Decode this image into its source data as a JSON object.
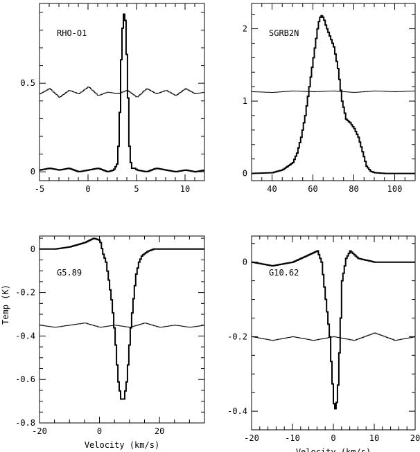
{
  "figure": {
    "ylabel": "Temp (K)"
  },
  "chart_data": [
    {
      "type": "line",
      "title": "RHO-O1",
      "xlabel": "",
      "ylabel": "",
      "xlim": [
        -5,
        12
      ],
      "ylim": [
        -0.05,
        0.95
      ],
      "xticks": [
        -5,
        0,
        5,
        10
      ],
      "xtick_labels": [
        "-5",
        "0",
        "5",
        "10"
      ],
      "yticks": [
        0,
        0.5
      ],
      "ytick_labels": [
        "0",
        "0.5"
      ],
      "x_minor_step": 1,
      "y_minor_step": 0.1,
      "series": [
        {
          "style": "thick",
          "x": [
            -5,
            -4,
            -3,
            -2,
            -1,
            0,
            1,
            2,
            2.6,
            3.0,
            3.2,
            3.4,
            3.6,
            3.8,
            4.0,
            4.2,
            4.4,
            4.8,
            5,
            6,
            7,
            8,
            9,
            10,
            11,
            12
          ],
          "y": [
            0.01,
            0.02,
            0.01,
            0.02,
            0.0,
            0.01,
            0.02,
            0.0,
            0.01,
            0.05,
            0.3,
            0.72,
            0.9,
            0.85,
            0.55,
            0.15,
            0.02,
            0.02,
            0.01,
            0.0,
            0.02,
            0.01,
            0.0,
            0.01,
            0.0,
            0.01
          ]
        },
        {
          "style": "thin",
          "x": [
            -5,
            -4,
            -3,
            -2,
            -1,
            0,
            1,
            2,
            3,
            4,
            5,
            6,
            7,
            8,
            9,
            10,
            11,
            12
          ],
          "y": [
            0.44,
            0.47,
            0.42,
            0.46,
            0.44,
            0.48,
            0.43,
            0.45,
            0.44,
            0.46,
            0.42,
            0.47,
            0.44,
            0.46,
            0.43,
            0.47,
            0.44,
            0.45
          ]
        }
      ]
    },
    {
      "type": "line",
      "title": "SGRB2N",
      "xlabel": "",
      "ylabel": "",
      "xlim": [
        30,
        110
      ],
      "ylim": [
        -0.1,
        2.35
      ],
      "xticks": [
        40,
        60,
        80,
        100
      ],
      "xtick_labels": [
        "40",
        "60",
        "80",
        "100"
      ],
      "yticks": [
        0,
        1,
        2
      ],
      "ytick_labels": [
        "0",
        "1",
        "2"
      ],
      "x_minor_step": 5,
      "y_minor_step": 0.2,
      "series": [
        {
          "style": "thick",
          "x": [
            30,
            40,
            45,
            50,
            52,
            54,
            56,
            58,
            60,
            62,
            63,
            64,
            65,
            66,
            68,
            70,
            72,
            74,
            76,
            78,
            80,
            82,
            84,
            86,
            88,
            90,
            95,
            100,
            105,
            110
          ],
          "y": [
            0.0,
            0.01,
            0.05,
            0.15,
            0.28,
            0.5,
            0.8,
            1.2,
            1.6,
            2.0,
            2.15,
            2.18,
            2.15,
            2.05,
            1.9,
            1.75,
            1.45,
            1.0,
            0.75,
            0.7,
            0.62,
            0.5,
            0.3,
            0.1,
            0.03,
            0.01,
            0.0,
            0.0,
            0.0,
            0.0
          ]
        },
        {
          "style": "thin",
          "x": [
            30,
            40,
            50,
            60,
            70,
            80,
            90,
            100,
            110
          ],
          "y": [
            1.13,
            1.12,
            1.14,
            1.13,
            1.14,
            1.12,
            1.14,
            1.13,
            1.14
          ]
        }
      ]
    },
    {
      "type": "line",
      "title": "G5.89",
      "xlabel": "Velocity (km/s)",
      "ylabel": "",
      "xlim": [
        -20,
        35
      ],
      "ylim": [
        -0.8,
        0.06
      ],
      "xticks": [
        -20,
        0,
        20
      ],
      "xtick_labels": [
        "-20",
        "0",
        "20"
      ],
      "yticks": [
        0,
        -0.2,
        -0.4,
        -0.6,
        -0.8
      ],
      "ytick_labels": [
        "0",
        "-0.2",
        "-0.4",
        "-0.6",
        "-0.8"
      ],
      "x_minor_step": 5,
      "y_minor_step": 0.05,
      "series": [
        {
          "style": "thick",
          "x": [
            -20,
            -15,
            -10,
            -5,
            -2,
            0,
            1,
            2,
            3,
            4,
            5,
            6,
            7,
            8,
            9,
            10,
            11,
            12,
            13,
            14,
            16,
            18,
            22,
            26,
            30,
            35
          ],
          "y": [
            0.0,
            0.0,
            0.01,
            0.03,
            0.05,
            0.04,
            -0.02,
            -0.06,
            -0.15,
            -0.25,
            -0.4,
            -0.6,
            -0.69,
            -0.69,
            -0.6,
            -0.4,
            -0.25,
            -0.12,
            -0.06,
            -0.03,
            -0.01,
            0.0,
            0.0,
            0.0,
            0.0,
            0.0
          ]
        },
        {
          "style": "thin",
          "x": [
            -20,
            -15,
            -10,
            -5,
            0,
            5,
            10,
            15,
            20,
            25,
            30,
            35
          ],
          "y": [
            -0.35,
            -0.36,
            -0.35,
            -0.34,
            -0.36,
            -0.35,
            -0.36,
            -0.34,
            -0.36,
            -0.35,
            -0.36,
            -0.35
          ]
        }
      ]
    },
    {
      "type": "line",
      "title": "G10.62",
      "xlabel": "Velocity (km/s)",
      "ylabel": "",
      "xlim": [
        -20,
        20
      ],
      "ylim": [
        -0.45,
        0.07
      ],
      "xticks": [
        -20,
        -10,
        0,
        10,
        20
      ],
      "xtick_labels": [
        "-20",
        "-10",
        "0",
        "10",
        "20"
      ],
      "yticks": [
        0,
        -0.2,
        -0.4
      ],
      "ytick_labels": [
        "0",
        "-0.2",
        "-0.4"
      ],
      "x_minor_step": 2,
      "y_minor_step": 0.05,
      "series": [
        {
          "style": "thick",
          "x": [
            -20,
            -15,
            -10,
            -6,
            -4,
            -3,
            -2,
            -1,
            -0.5,
            0,
            0.5,
            1,
            1.5,
            2,
            3,
            4,
            6,
            10,
            15,
            20
          ],
          "y": [
            0.0,
            -0.01,
            0.0,
            0.02,
            0.03,
            0.0,
            -0.1,
            -0.2,
            -0.3,
            -0.38,
            -0.4,
            -0.33,
            -0.2,
            -0.05,
            0.01,
            0.03,
            0.01,
            0.0,
            0.0,
            0.0
          ]
        },
        {
          "style": "thin",
          "x": [
            -20,
            -15,
            -10,
            -5,
            0,
            5,
            10,
            15,
            20
          ],
          "y": [
            -0.2,
            -0.21,
            -0.2,
            -0.21,
            -0.2,
            -0.21,
            -0.19,
            -0.21,
            -0.2
          ]
        }
      ]
    }
  ]
}
